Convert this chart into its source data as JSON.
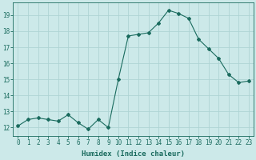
{
  "x": [
    0,
    1,
    2,
    3,
    4,
    5,
    6,
    7,
    8,
    9,
    10,
    11,
    12,
    13,
    14,
    15,
    16,
    17,
    18,
    19,
    20,
    21,
    22,
    23
  ],
  "y": [
    12.1,
    12.5,
    12.6,
    12.5,
    12.4,
    12.8,
    12.3,
    11.9,
    12.5,
    12.0,
    15.0,
    17.7,
    17.8,
    17.9,
    18.5,
    19.3,
    19.1,
    18.8,
    17.5,
    16.9,
    16.3,
    15.3,
    14.8,
    14.9
  ],
  "line_color": "#1a6b5e",
  "marker": "D",
  "marker_size": 2,
  "bg_color": "#cce9e9",
  "grid_color": "#afd4d4",
  "xlabel": "Humidex (Indice chaleur)",
  "xlabel_fontsize": 6.5,
  "tick_fontsize": 5.5,
  "ylim": [
    11.5,
    19.8
  ],
  "yticks": [
    12,
    13,
    14,
    15,
    16,
    17,
    18,
    19
  ],
  "xticks": [
    0,
    1,
    2,
    3,
    4,
    5,
    6,
    7,
    8,
    9,
    10,
    11,
    12,
    13,
    14,
    15,
    16,
    17,
    18,
    19,
    20,
    21,
    22,
    23
  ],
  "axis_color": "#1a6b5e"
}
